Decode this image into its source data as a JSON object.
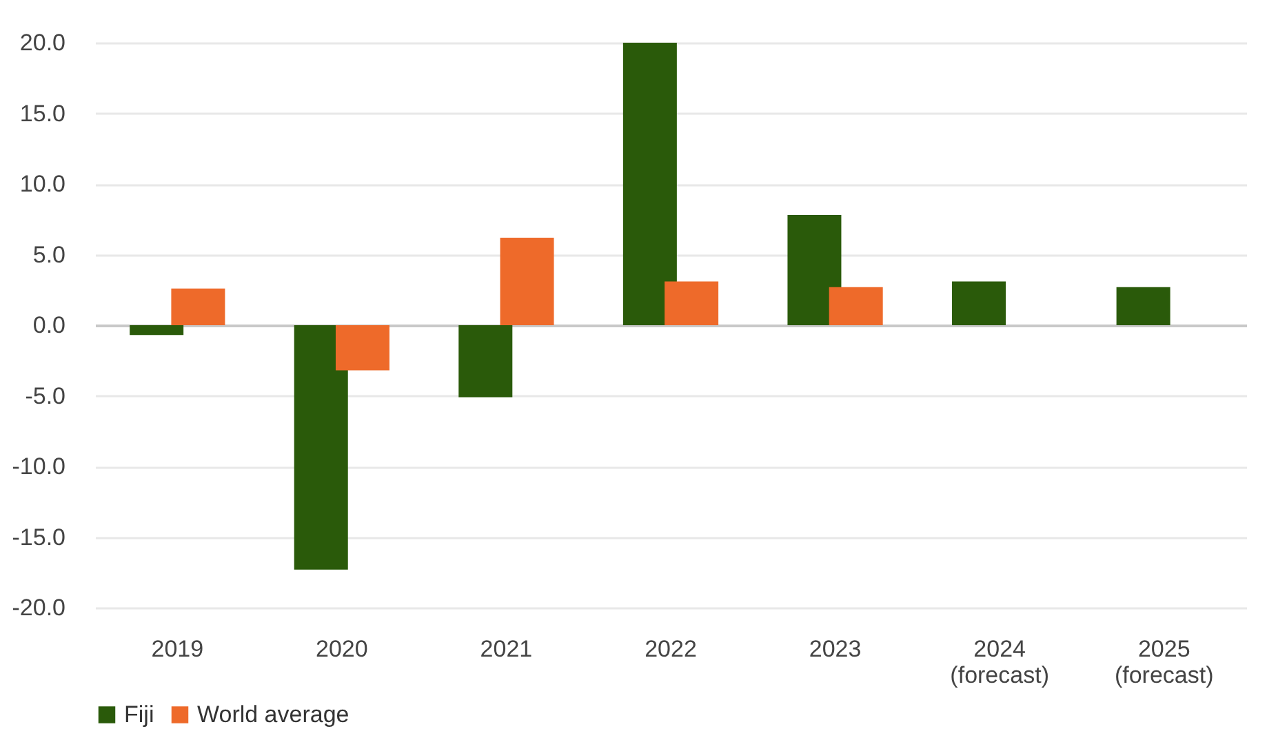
{
  "chart_data": {
    "type": "bar",
    "categories": [
      "2019",
      "2020",
      "2021",
      "2022",
      "2023",
      "2024\n(forecast)",
      "2025\n(forecast)"
    ],
    "series": [
      {
        "name": "Fiji",
        "color": "#2a5a0a",
        "values": [
          -0.7,
          -17.3,
          -5.1,
          20.0,
          7.8,
          3.1,
          2.7
        ]
      },
      {
        "name": "World average",
        "color": "#ee6a2a",
        "values": [
          2.6,
          -3.2,
          6.2,
          3.1,
          2.7,
          null,
          null
        ]
      }
    ],
    "ylim": [
      -20,
      20
    ],
    "yticks": [
      {
        "value": -20,
        "label": "-20.0"
      },
      {
        "value": -15,
        "label": "-15.0"
      },
      {
        "value": -10,
        "label": "-10.0"
      },
      {
        "value": -5,
        "label": "-5.0"
      },
      {
        "value": 0,
        "label": "0.0"
      },
      {
        "value": 5,
        "label": "5.0"
      },
      {
        "value": 10,
        "label": "10.0"
      },
      {
        "value": 15,
        "label": "15.0"
      },
      {
        "value": 20,
        "label": "20.0"
      }
    ],
    "grid": "y",
    "legend": "bottom"
  }
}
